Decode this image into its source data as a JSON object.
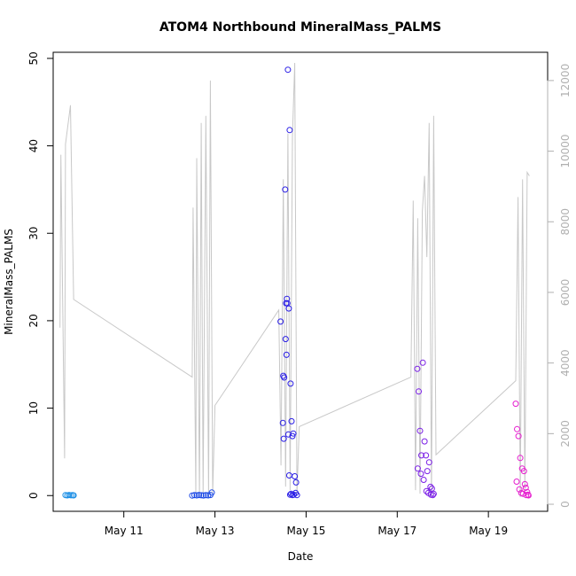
{
  "chart_data": {
    "type": "scatter",
    "title": "ATOM4 Northbound MineralMass_PALMS",
    "xlabel": "Date",
    "ylabel": "MineralMass_PALMS",
    "x_ticks": [
      "May 11",
      "May 13",
      "May 15",
      "May 17",
      "May 19"
    ],
    "x_tick_values": [
      11,
      13,
      15,
      17,
      19
    ],
    "xlim": [
      9.45,
      20.3
    ],
    "ylim": [
      -1.8,
      50.7
    ],
    "y_ticks": [
      0,
      10,
      20,
      30,
      40,
      50
    ],
    "y2_label": "",
    "y2lim": [
      -200,
      12800
    ],
    "y2_ticks": [
      0,
      2000,
      4000,
      6000,
      8000,
      10000,
      12000
    ],
    "grid": false,
    "colors": {
      "altitude_line": "#c8c8c8",
      "series": [
        "#1e90e6",
        "#1e4be6",
        "#2a1ee6",
        "#7a1ee6",
        "#e61ecf"
      ]
    },
    "secondary_series": {
      "name": "",
      "note": "altitude-like trace on right axis",
      "x": [
        9.6,
        9.62,
        9.7,
        9.72,
        9.8,
        9.83,
        9.9,
        12.5,
        12.52,
        12.58,
        12.6,
        12.66,
        12.7,
        12.74,
        12.8,
        12.86,
        12.9,
        12.95,
        13.0,
        14.4,
        14.45,
        14.5,
        14.55,
        14.6,
        14.65,
        14.7,
        14.75,
        14.8,
        14.85,
        17.3,
        17.35,
        17.4,
        17.45,
        17.5,
        17.55,
        17.6,
        17.65,
        17.7,
        17.75,
        17.8,
        17.85,
        19.6,
        19.65,
        19.7,
        19.75,
        19.8,
        19.85,
        19.9
      ],
      "y": [
        5000,
        9900,
        1300,
        10200,
        11000,
        11300,
        5800,
        3600,
        8400,
        300,
        9800,
        200,
        10800,
        300,
        11000,
        200,
        12000,
        300,
        2800,
        5500,
        1100,
        9200,
        500,
        10500,
        400,
        10400,
        12500,
        300,
        2200,
        3600,
        8600,
        400,
        8100,
        300,
        8300,
        9300,
        7000,
        10800,
        200,
        11000,
        1400,
        3500,
        8700,
        200,
        9200,
        400,
        9400,
        9300
      ]
    },
    "series": [
      {
        "color": "#1e90e6",
        "x": [
          9.72,
          9.76,
          9.8,
          9.84,
          9.88,
          9.9
        ],
        "y": [
          0.05,
          0.02,
          0.06,
          0.03,
          0.04,
          0.02
        ]
      },
      {
        "color": "#1e4be6",
        "x": [
          12.5,
          12.55,
          12.6,
          12.65,
          12.7,
          12.75,
          12.8,
          12.85,
          12.9,
          12.93
        ],
        "y": [
          0.0,
          0.05,
          0.02,
          0.06,
          0.03,
          0.01,
          0.04,
          0.02,
          0.06,
          0.35
        ]
      },
      {
        "color": "#2a1ee6",
        "x": [
          14.44,
          14.49,
          14.51,
          14.54,
          14.56,
          14.58,
          14.6,
          14.62,
          14.64,
          14.66,
          14.68,
          14.7,
          14.72,
          14.75,
          14.78,
          14.5,
          14.52,
          14.55,
          14.57,
          14.59,
          14.61,
          14.63,
          14.65,
          14.67,
          14.7,
          14.73,
          14.77,
          14.8
        ],
        "y": [
          19.9,
          8.3,
          6.5,
          35.0,
          22.0,
          22.5,
          48.7,
          21.4,
          41.8,
          12.8,
          8.5,
          6.8,
          7.1,
          2.2,
          1.5,
          13.7,
          13.5,
          17.9,
          16.1,
          22.0,
          7.0,
          2.3,
          0.1,
          0.2,
          0.05,
          0.1,
          0.3,
          0.05
        ]
      },
      {
        "color": "#7a1ee6",
        "x": [
          17.44,
          17.47,
          17.5,
          17.53,
          17.56,
          17.6,
          17.63,
          17.66,
          17.7,
          17.73,
          17.76,
          17.8,
          17.45,
          17.52,
          17.58,
          17.64,
          17.68,
          17.74,
          17.78
        ],
        "y": [
          14.5,
          11.9,
          7.4,
          4.6,
          15.2,
          6.2,
          4.6,
          2.8,
          3.8,
          1.0,
          0.8,
          0.2,
          3.1,
          2.5,
          1.8,
          0.5,
          0.3,
          0.1,
          0.05
        ]
      },
      {
        "color": "#e61ecf",
        "x": [
          19.6,
          19.63,
          19.66,
          19.7,
          19.74,
          19.78,
          19.8,
          19.82,
          19.85,
          19.87,
          19.62,
          19.68,
          19.72,
          19.76,
          19.83,
          19.88
        ],
        "y": [
          10.5,
          7.6,
          6.8,
          4.3,
          3.1,
          2.8,
          1.3,
          0.9,
          0.4,
          0.1,
          1.6,
          0.7,
          0.3,
          0.2,
          0.05,
          0.02
        ]
      }
    ]
  }
}
